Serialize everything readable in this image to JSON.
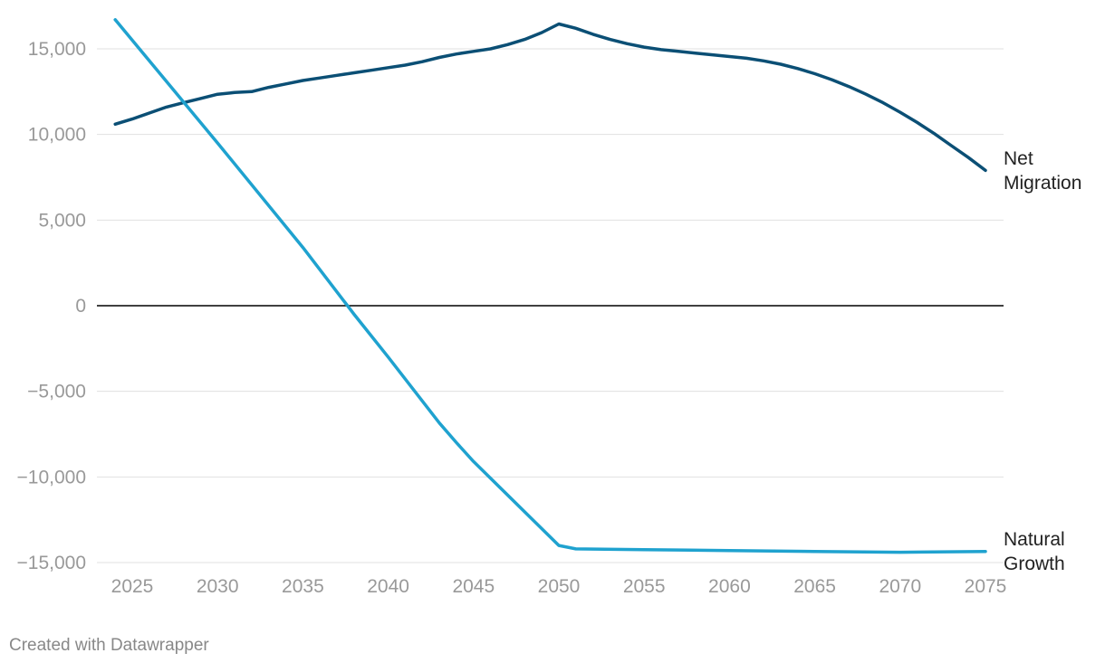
{
  "chart_data": {
    "type": "line",
    "title": "",
    "xlabel": "",
    "ylabel": "",
    "xlim": [
      2024,
      2075
    ],
    "ylim": [
      -15000,
      16500
    ],
    "grid": true,
    "legend": "direct labels at line ends (right)",
    "x_ticks": [
      2025,
      2030,
      2035,
      2040,
      2045,
      2050,
      2055,
      2060,
      2065,
      2070,
      2075
    ],
    "x_tick_labels": [
      "2025",
      "2030",
      "2035",
      "2040",
      "2045",
      "2050",
      "2055",
      "2060",
      "2065",
      "2070",
      "2075"
    ],
    "y_ticks": [
      15000,
      10000,
      5000,
      0,
      -5000,
      -10000,
      -15000
    ],
    "y_tick_labels": [
      "15,000",
      "10,000",
      "5,000",
      "0",
      "−5,000",
      "−10,000",
      "−15,000"
    ],
    "series": [
      {
        "name": "Net Migration",
        "label_lines": [
          "Net",
          "Migration"
        ],
        "color": "#0b4f75",
        "x": [
          2024,
          2025,
          2026,
          2027,
          2028,
          2029,
          2030,
          2031,
          2032,
          2033,
          2034,
          2035,
          2036,
          2037,
          2038,
          2039,
          2040,
          2041,
          2042,
          2043,
          2044,
          2045,
          2046,
          2047,
          2048,
          2049,
          2050,
          2051,
          2052,
          2053,
          2054,
          2055,
          2056,
          2057,
          2058,
          2059,
          2060,
          2061,
          2062,
          2063,
          2064,
          2065,
          2066,
          2067,
          2068,
          2069,
          2070,
          2071,
          2072,
          2073,
          2074,
          2075
        ],
        "values": [
          10600,
          10900,
          11250,
          11600,
          11850,
          12100,
          12350,
          12450,
          12500,
          12750,
          12950,
          13150,
          13300,
          13450,
          13600,
          13750,
          13900,
          14050,
          14250,
          14500,
          14700,
          14850,
          15000,
          15250,
          15550,
          15950,
          16450,
          16200,
          15850,
          15550,
          15300,
          15100,
          14950,
          14850,
          14750,
          14650,
          14550,
          14450,
          14300,
          14100,
          13850,
          13550,
          13200,
          12800,
          12350,
          11850,
          11300,
          10700,
          10050,
          9350,
          8650,
          7900
        ]
      },
      {
        "name": "Natural Growth",
        "label_lines": [
          "Natural",
          "Growth"
        ],
        "color": "#1fa2cf",
        "x": [
          2024,
          2030,
          2035,
          2038,
          2040,
          2043,
          2044,
          2045,
          2050,
          2051,
          2055,
          2060,
          2065,
          2070,
          2075
        ],
        "values": [
          16700,
          9500,
          3400,
          -500,
          -3000,
          -6850,
          -8000,
          -9100,
          -14000,
          -14200,
          -14250,
          -14300,
          -14350,
          -14400,
          -14350
        ]
      }
    ],
    "zero_line_color": "#000000",
    "grid_color": "#e0e0e0",
    "tick_label_color": "#999999"
  },
  "footer": {
    "credit": "Created with Datawrapper"
  }
}
